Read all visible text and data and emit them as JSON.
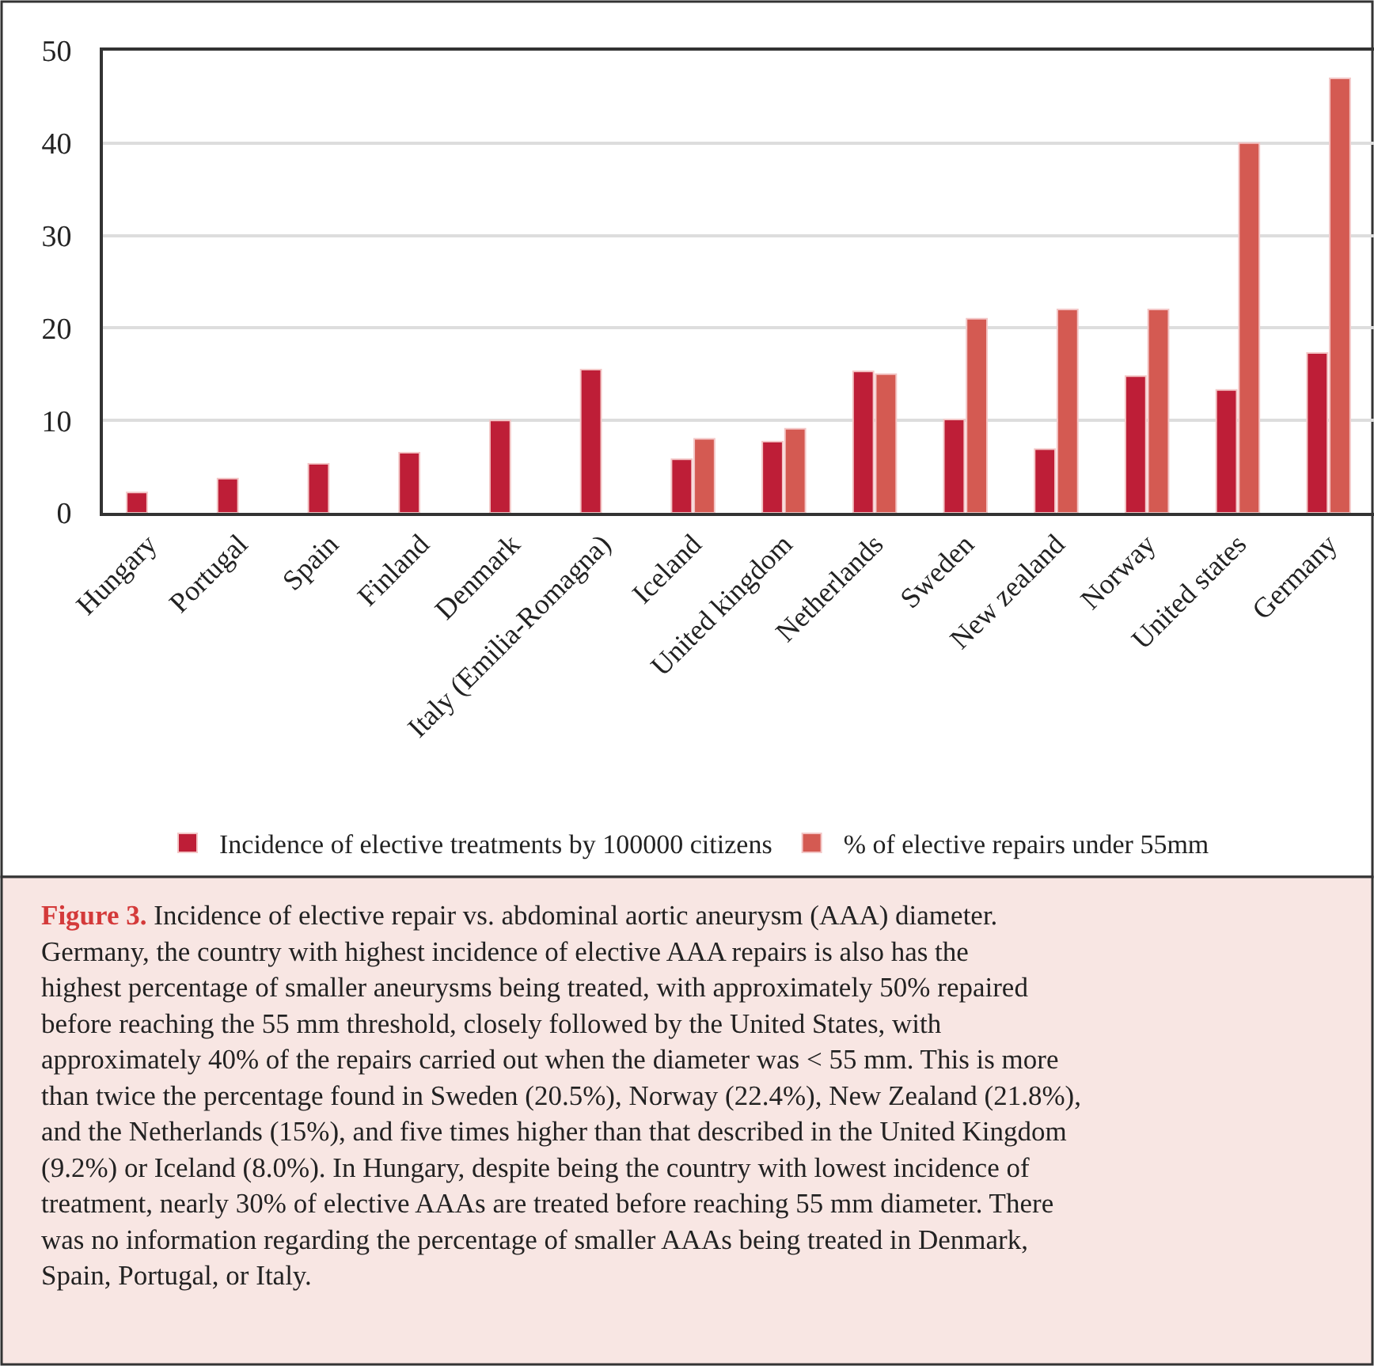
{
  "chart_data": {
    "type": "bar",
    "categories": [
      "Hungary",
      "Portugal",
      "Spain",
      "Finland",
      "Denmark",
      "Italy (Emilia-Romagna)",
      "Iceland",
      "United kingdom",
      "Netherlands",
      "Sweden",
      "New zealand",
      "Norway",
      "United states",
      "Germany"
    ],
    "series": [
      {
        "name": "Incidence of elective treatments by 100000 citizens",
        "color": "#be1e37",
        "values": [
          2.2,
          3.7,
          5.3,
          6.5,
          10,
          15.5,
          5.8,
          7.7,
          15.3,
          10.1,
          6.9,
          14.8,
          13.3,
          17.3
        ]
      },
      {
        "name": "% of elective repairs under 55mm",
        "color": "#d45a52",
        "values": [
          null,
          null,
          null,
          null,
          null,
          null,
          8.0,
          9.1,
          15.0,
          21.0,
          22.0,
          22.0,
          40,
          47
        ]
      }
    ],
    "ylim": [
      0,
      50
    ],
    "yticks": [
      0,
      10,
      20,
      30,
      40,
      50
    ],
    "grid": "y",
    "legend": "bottom",
    "annotations": [
      "Figure 3.",
      "Incidence of elective repair vs. abdominal aortic aneurysm (AAA) diameter. Germany, the country with highest incidence of elective AAA repairs is also has the highest percentage of smaller aneurysms being treated, with approximately 50% repaired before reaching the 55 mm threshold, closely followed by the United States, with approximately 40% of the repairs carried out when the diameter was < 55 mm. This is more than twice the percentage found in Sweden (20.5%), Norway (22.4%), New Zealand (21.8%), and the Netherlands (15%), and five times higher than that described in the United Kingdom (9.2%) or Iceland (8.0%). In Hungary, despite being the country with lowest incidence of treatment, nearly 30% of elective AAAs are treated before reaching 55 mm diameter. There was no information regarding the percentage of smaller AAAs being treated in Denmark, Spain, Portugal, or Italy."
    ]
  }
}
